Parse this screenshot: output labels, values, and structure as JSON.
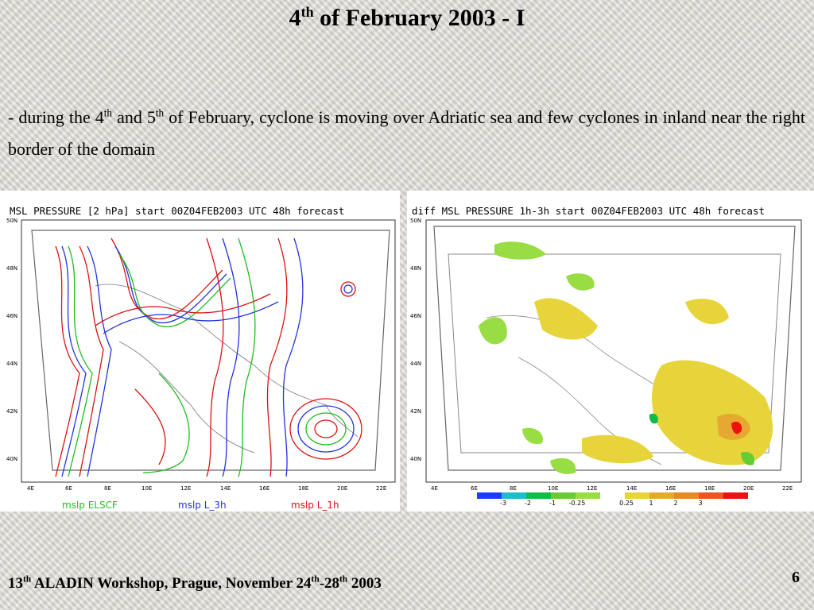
{
  "slide": {
    "title_main": "4",
    "title_sup": "th",
    "title_rest": " of February 2003 - I",
    "para_a": "- during the 4",
    "para_sup1": "th",
    "para_b": " and 5",
    "para_sup2": "th",
    "para_c": " of February, cyclone is  moving over Adriatic sea and few cyclones in inland near the right border of the domain",
    "footer_a": "13",
    "footer_sup1": "th",
    "footer_b": " ALADIN Workshop, Prague, November 24",
    "footer_sup2": "th",
    "footer_c": "-28",
    "footer_sup3": "th",
    "footer_d": " 2003",
    "page_number": "6"
  },
  "left_map": {
    "title": "MSL PRESSURE [2 hPa] start 00Z04FEB2003 UTC 48h forecast",
    "lat_labels": [
      "50N",
      "48N",
      "46N",
      "44N",
      "42N",
      "40N"
    ],
    "lon_labels": [
      "4E",
      "6E",
      "8E",
      "10E",
      "12E",
      "14E",
      "16E",
      "18E",
      "20E",
      "22E"
    ],
    "legend": [
      {
        "label": "mslp ELSCF",
        "color": "#22bb22"
      },
      {
        "label": "mslp L_3h",
        "color": "#2233dd"
      },
      {
        "label": "mslp L_1h",
        "color": "#dd1111"
      }
    ]
  },
  "right_map": {
    "title": "diff MSL PRESSURE 1h-3h start 00Z04FEB2003 UTC 48h forecast",
    "lat_labels": [
      "50N",
      "48N",
      "46N",
      "44N",
      "42N",
      "40N"
    ],
    "lon_labels": [
      "4E",
      "6E",
      "8E",
      "10E",
      "12E",
      "14E",
      "16E",
      "18E",
      "20E",
      "22E"
    ],
    "colorbar": {
      "colors": [
        "#1a3cff",
        "#22bbcc",
        "#11bb44",
        "#66cc33",
        "#99dd44",
        "#ffffff",
        "#e6d43a",
        "#e6a830",
        "#e68a28",
        "#ee5522",
        "#ee1111"
      ],
      "labels": [
        "-3",
        "-2",
        "-1",
        "-0.25",
        "0.25",
        "1",
        "2",
        "3"
      ]
    }
  }
}
